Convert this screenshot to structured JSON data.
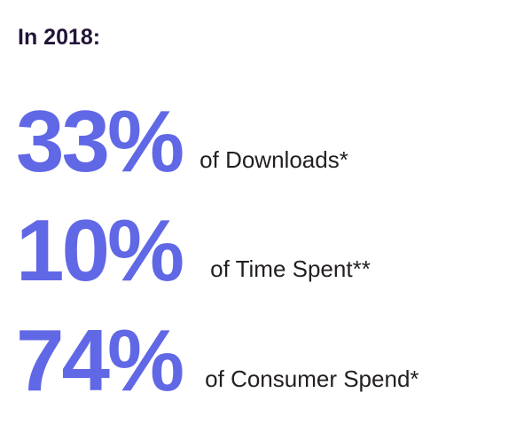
{
  "colors": {
    "heading": "#221538",
    "accent": "#6168E6",
    "text": "#231F20",
    "background": "#FFFFFF"
  },
  "title": "In 2018:",
  "stats": [
    {
      "value": "33%",
      "label": "of Downloads*"
    },
    {
      "value": "10%",
      "label": "of Time Spent**"
    },
    {
      "value": "74%",
      "label": "of Consumer Spend*"
    }
  ]
}
